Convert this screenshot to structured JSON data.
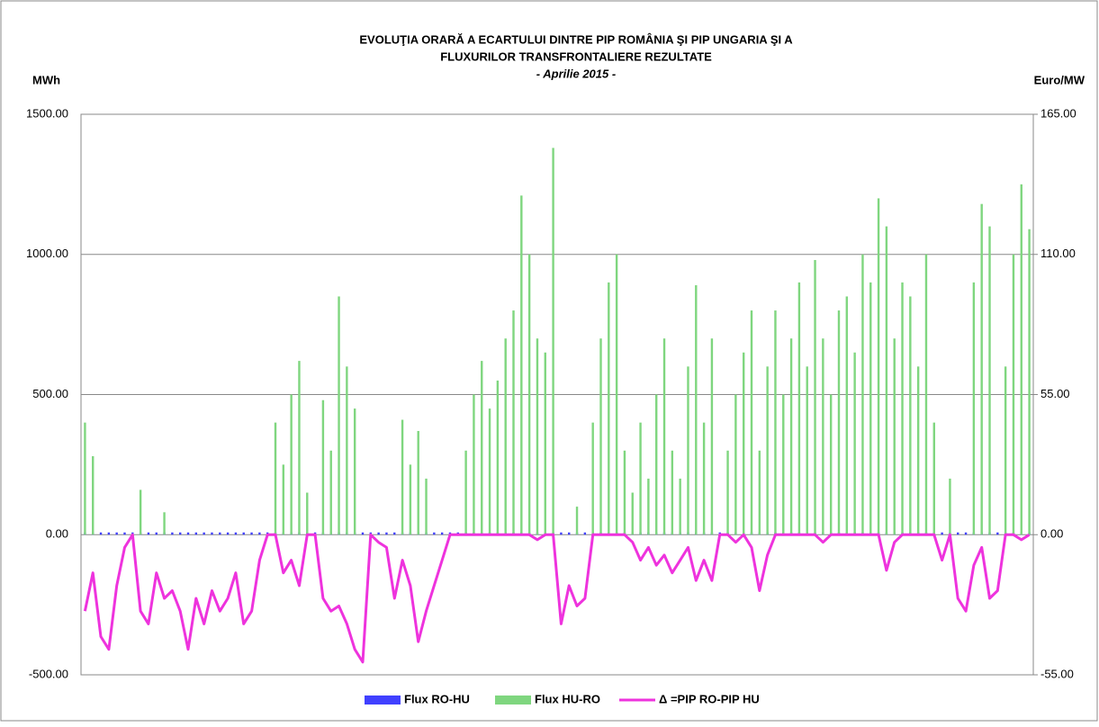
{
  "chart_data": {
    "type": "bar",
    "title": [
      "EVOLUŢIA ORARĂ A ECARTULUI DINTRE PIP ROMÂNIA ŞI PIP UNGARIA ŞI A",
      "FLUXURILOR TRANSFRONTALIERE REZULTATE"
    ],
    "subtitle": "- Aprilie 2015 -",
    "y_label": "MWh",
    "y2_label": "Euro/MW",
    "ylim": [
      -500,
      1500
    ],
    "yticks": [
      {
        "value": -500,
        "label": "-500.00"
      },
      {
        "value": 0,
        "label": "0.00"
      },
      {
        "value": 500,
        "label": "500.00"
      },
      {
        "value": 1000,
        "label": "1000.00"
      },
      {
        "value": 1500,
        "label": "1500.00"
      }
    ],
    "y2lim": [
      -55,
      165
    ],
    "y2ticks": [
      {
        "value": -55,
        "label": "-55.00"
      },
      {
        "value": 0,
        "label": "0.00"
      },
      {
        "value": 55,
        "label": "55.00"
      },
      {
        "value": 110,
        "label": "110.00"
      },
      {
        "value": 165,
        "label": "165.00"
      }
    ],
    "grid": true,
    "legend": "bottom",
    "series": [
      {
        "name": "Flux RO-HU",
        "color": "#4040ff",
        "values": [
          8,
          8,
          8,
          8,
          8,
          8,
          8,
          8,
          8,
          8,
          8,
          8,
          8,
          8,
          8,
          8,
          8,
          8,
          8,
          8,
          8,
          8,
          8,
          8,
          8,
          8,
          8,
          8,
          8,
          8,
          8,
          8,
          8,
          8,
          8,
          8,
          8,
          8,
          8,
          8,
          8,
          8,
          8,
          8,
          8,
          8,
          8,
          8,
          8,
          8,
          8,
          8,
          8,
          8,
          8,
          8,
          8,
          8,
          8,
          8,
          8,
          8,
          8,
          8,
          8,
          8,
          8,
          8,
          8,
          8,
          8,
          8,
          8,
          8,
          8,
          8,
          8,
          8,
          8,
          8,
          8,
          8,
          8,
          8,
          8,
          8,
          8,
          8,
          8,
          8,
          8,
          8,
          8,
          8,
          8,
          8,
          8,
          8,
          8,
          8,
          8,
          8,
          8,
          8,
          8,
          8,
          8,
          8,
          8,
          8,
          8,
          8,
          8,
          8,
          8,
          8,
          8,
          8,
          8,
          8
        ]
      },
      {
        "name": "Flux HU-RO",
        "color": "#7fd67f",
        "values": [
          400,
          280,
          0,
          0,
          0,
          0,
          0,
          160,
          0,
          0,
          80,
          0,
          0,
          0,
          0,
          0,
          0,
          0,
          0,
          0,
          0,
          0,
          0,
          0,
          400,
          250,
          500,
          620,
          150,
          0,
          480,
          300,
          850,
          600,
          450,
          0,
          0,
          0,
          0,
          0,
          410,
          250,
          370,
          200,
          0,
          0,
          0,
          0,
          300,
          500,
          620,
          450,
          550,
          700,
          800,
          1210,
          1000,
          700,
          650,
          1380,
          0,
          0,
          100,
          0,
          400,
          700,
          900,
          1000,
          300,
          150,
          400,
          200,
          500,
          700,
          300,
          200,
          600,
          890,
          400,
          700,
          0,
          300,
          500,
          650,
          800,
          300,
          600,
          800,
          500,
          700,
          900,
          600,
          980,
          700,
          500,
          800,
          850,
          650,
          1000,
          900,
          1200,
          1100,
          700,
          900,
          850,
          600,
          1000,
          400,
          0,
          200,
          0,
          0,
          900,
          1180,
          1100,
          0,
          600,
          1000,
          1250,
          1090
        ]
      },
      {
        "name": "Δ =PIP RO-PIP HU",
        "color": "#ee33dd",
        "type": "line",
        "axis": "y2",
        "values": [
          -30,
          -15,
          -40,
          -45,
          -20,
          -5,
          0,
          -30,
          -35,
          -15,
          -25,
          -22,
          -30,
          -45,
          -25,
          -35,
          -22,
          -30,
          -25,
          -15,
          -35,
          -30,
          -10,
          0,
          0,
          -15,
          -10,
          -20,
          0,
          0,
          -25,
          -30,
          -28,
          -35,
          -45,
          -50,
          0,
          -3,
          -5,
          -25,
          -10,
          -20,
          -42,
          -30,
          -20,
          -10,
          0,
          0,
          0,
          0,
          0,
          0,
          0,
          0,
          0,
          0,
          0,
          -2,
          0,
          0,
          -35,
          -20,
          -28,
          -25,
          0,
          0,
          0,
          0,
          0,
          -3,
          -10,
          -5,
          -12,
          -8,
          -15,
          -10,
          -5,
          -18,
          -10,
          -18,
          0,
          0,
          -3,
          0,
          -5,
          -22,
          -8,
          0,
          0,
          0,
          0,
          0,
          0,
          -3,
          0,
          0,
          0,
          0,
          0,
          0,
          0,
          -14,
          -3,
          0,
          0,
          0,
          0,
          0,
          -10,
          0,
          -25,
          -30,
          -12,
          -5,
          -25,
          -22,
          0,
          0,
          -2,
          0
        ]
      }
    ]
  }
}
